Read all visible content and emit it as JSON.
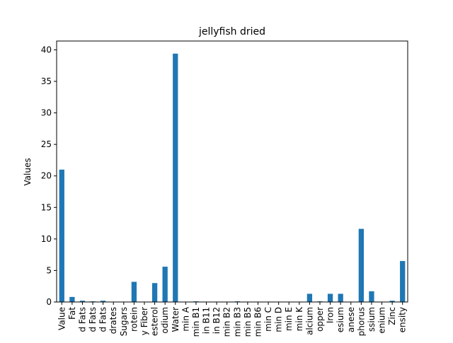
{
  "chart_data": {
    "type": "bar",
    "title": "jellyfish dried",
    "xlabel": "",
    "ylabel": "Values",
    "ylim": [
      0,
      41.4
    ],
    "yticks": [
      0,
      5,
      10,
      15,
      20,
      25,
      30,
      35,
      40
    ],
    "grid": false,
    "legend": "none",
    "bar_color": "#1f77b4",
    "categories": [
      "Value",
      "Fat",
      "d Fats",
      "d Fats",
      "d Fats",
      "drates",
      "Sugars",
      "rotein",
      "y Fiber",
      "esterol",
      "odium",
      "Water",
      "min A",
      "min B1",
      "in B11",
      "in B12",
      "min B2",
      "min B3",
      "min B5",
      "min B6",
      "min C",
      "min D",
      "min E",
      "min K",
      "alcium",
      "opper",
      "Iron",
      "esium",
      "anese",
      "phorus",
      "ssium",
      "enium",
      "Zinc",
      "ensity"
    ],
    "values": [
      21.0,
      0.8,
      0.2,
      0.1,
      0.2,
      0.0,
      0.0,
      3.2,
      0.0,
      3.0,
      5.6,
      39.4,
      0.0,
      0.1,
      0.0,
      0.0,
      0.0,
      0.1,
      0.0,
      0.0,
      0.0,
      0.0,
      0.0,
      0.0,
      1.3,
      0.1,
      1.3,
      1.3,
      0.0,
      11.6,
      1.7,
      0.0,
      0.2,
      6.5
    ]
  }
}
